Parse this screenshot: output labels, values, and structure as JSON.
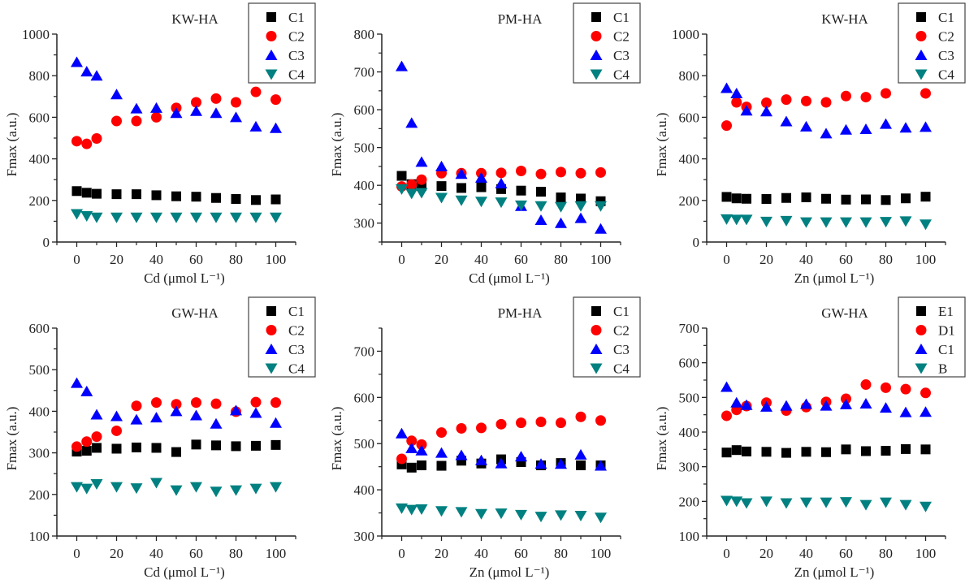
{
  "chart_data": [
    {
      "type": "scatter",
      "title": "KW-HA",
      "xlabel": "Cd (μmol L⁻¹)",
      "ylabel": "Fmax (a.u.)",
      "xlim": [
        -10,
        110
      ],
      "ylim": [
        0,
        1000
      ],
      "yticks": [
        0,
        200,
        400,
        600,
        800,
        1000
      ],
      "xticks": [
        0,
        20,
        40,
        60,
        80,
        100
      ],
      "legend": "top-right",
      "grid": false,
      "x": [
        0,
        5,
        10,
        20,
        30,
        40,
        50,
        60,
        70,
        80,
        90,
        100
      ],
      "series": [
        {
          "name": "C1",
          "marker": "square",
          "color": "#000000",
          "values": [
            245,
            237,
            232,
            230,
            230,
            225,
            220,
            218,
            212,
            207,
            202,
            205
          ]
        },
        {
          "name": "C2",
          "marker": "circle",
          "color": "#ff0000",
          "values": [
            485,
            472,
            498,
            582,
            582,
            600,
            645,
            672,
            690,
            672,
            722,
            685
          ]
        },
        {
          "name": "C3",
          "marker": "triangle-up",
          "color": "#0000ff",
          "values": [
            865,
            820,
            800,
            710,
            642,
            645,
            620,
            630,
            620,
            600,
            555,
            548
          ]
        },
        {
          "name": "C4",
          "marker": "triangle-down",
          "color": "#008080",
          "values": [
            135,
            125,
            118,
            118,
            118,
            118,
            118,
            118,
            118,
            118,
            118,
            118
          ]
        }
      ]
    },
    {
      "type": "scatter",
      "title": "PM-HA",
      "xlabel": "Cd (μmol L⁻¹)",
      "ylabel": "Fmax (a.u.)",
      "xlim": [
        -10,
        110
      ],
      "ylim": [
        250,
        800
      ],
      "yticks": [
        300,
        400,
        500,
        600,
        700,
        800
      ],
      "xticks": [
        0,
        20,
        40,
        60,
        80,
        100
      ],
      "legend": "top-right",
      "grid": false,
      "x": [
        0,
        5,
        10,
        20,
        30,
        40,
        50,
        60,
        70,
        80,
        90,
        100
      ],
      "series": [
        {
          "name": "C1",
          "marker": "square",
          "color": "#000000",
          "values": [
            425,
            403,
            398,
            398,
            393,
            395,
            390,
            386,
            383,
            368,
            365,
            358
          ]
        },
        {
          "name": "C2",
          "marker": "circle",
          "color": "#ff0000",
          "values": [
            397,
            402,
            415,
            432,
            432,
            432,
            433,
            438,
            430,
            435,
            432,
            434
          ]
        },
        {
          "name": "C3",
          "marker": "triangle-up",
          "color": "#0000ff",
          "values": [
            715,
            565,
            462,
            450,
            430,
            420,
            405,
            345,
            308,
            300,
            313,
            285
          ]
        },
        {
          "name": "C4",
          "marker": "triangle-down",
          "color": "#008080",
          "values": [
            390,
            378,
            380,
            367,
            360,
            357,
            355,
            347,
            345,
            343,
            345,
            345
          ]
        }
      ]
    },
    {
      "type": "scatter",
      "title": "KW-HA",
      "xlabel": "Zn (μmol L⁻¹)",
      "ylabel": "Fmax (a.u.)",
      "xlim": [
        -10,
        110
      ],
      "ylim": [
        0,
        1000
      ],
      "yticks": [
        0,
        200,
        400,
        600,
        800,
        1000
      ],
      "xticks": [
        0,
        20,
        40,
        60,
        80,
        100
      ],
      "legend": "top-right",
      "grid": false,
      "x": [
        0,
        5,
        10,
        20,
        30,
        40,
        50,
        60,
        70,
        80,
        90,
        100
      ],
      "series": [
        {
          "name": "C1",
          "marker": "square",
          "color": "#000000",
          "values": [
            217,
            210,
            208,
            207,
            212,
            215,
            208,
            204,
            205,
            202,
            210,
            218
          ]
        },
        {
          "name": "C2",
          "marker": "circle",
          "color": "#ff0000",
          "values": [
            560,
            672,
            650,
            670,
            685,
            678,
            672,
            702,
            697,
            715,
            null,
            715
          ]
        },
        {
          "name": "C3",
          "marker": "triangle-up",
          "color": "#0000ff",
          "values": [
            740,
            715,
            632,
            628,
            580,
            555,
            522,
            540,
            543,
            568,
            550,
            553
          ]
        },
        {
          "name": "C4",
          "marker": "triangle-down",
          "color": "#008080",
          "values": [
            110,
            108,
            108,
            98,
            102,
            95,
            95,
            95,
            95,
            97,
            100,
            85
          ]
        }
      ]
    },
    {
      "type": "scatter",
      "title": "GW-HA",
      "xlabel": "Cd (μmol L⁻¹)",
      "ylabel": "Fmax (a.u.)",
      "xlim": [
        -10,
        110
      ],
      "ylim": [
        100,
        600
      ],
      "yticks": [
        100,
        200,
        300,
        400,
        500,
        600
      ],
      "xticks": [
        0,
        20,
        40,
        60,
        80,
        100
      ],
      "legend": "top-right",
      "grid": false,
      "x": [
        0,
        5,
        10,
        20,
        30,
        40,
        50,
        60,
        70,
        80,
        90,
        100
      ],
      "series": [
        {
          "name": "C1",
          "marker": "square",
          "color": "#000000",
          "values": [
            303,
            305,
            312,
            310,
            313,
            312,
            302,
            320,
            318,
            316,
            317,
            319
          ]
        },
        {
          "name": "C2",
          "marker": "circle",
          "color": "#ff0000",
          "values": [
            315,
            327,
            339,
            353,
            413,
            421,
            417,
            421,
            418,
            399,
            422,
            421
          ]
        },
        {
          "name": "C3",
          "marker": "triangle-up",
          "color": "#0000ff",
          "values": [
            468,
            448,
            392,
            388,
            380,
            385,
            400,
            390,
            370,
            402,
            396,
            372
          ]
        },
        {
          "name": "C4",
          "marker": "triangle-down",
          "color": "#008080",
          "values": [
            218,
            214,
            225,
            218,
            215,
            228,
            210,
            218,
            207,
            210,
            214,
            218
          ]
        }
      ]
    },
    {
      "type": "scatter",
      "title": "PM-HA",
      "xlabel": "Zn (μmol L⁻¹)",
      "ylabel": "Fmax (a.u.)",
      "xlim": [
        -10,
        110
      ],
      "ylim": [
        300,
        750
      ],
      "yticks": [
        300,
        400,
        500,
        600,
        700
      ],
      "xticks": [
        0,
        20,
        40,
        60,
        80,
        100
      ],
      "legend": "top-right",
      "grid": false,
      "x": [
        0,
        5,
        10,
        20,
        30,
        40,
        50,
        60,
        70,
        80,
        90,
        100
      ],
      "series": [
        {
          "name": "C1",
          "marker": "square",
          "color": "#000000",
          "values": [
            455,
            448,
            453,
            452,
            463,
            457,
            466,
            460,
            453,
            458,
            453,
            453
          ]
        },
        {
          "name": "C2",
          "marker": "circle",
          "color": "#ff0000",
          "values": [
            467,
            506,
            498,
            524,
            533,
            534,
            542,
            545,
            547,
            545,
            558,
            550
          ]
        },
        {
          "name": "C3",
          "marker": "triangle-up",
          "color": "#0000ff",
          "values": [
            522,
            490,
            485,
            480,
            475,
            464,
            457,
            472,
            456,
            456,
            476,
            452
          ]
        },
        {
          "name": "C4",
          "marker": "triangle-down",
          "color": "#008080",
          "values": [
            360,
            357,
            358,
            354,
            352,
            348,
            349,
            346,
            342,
            345,
            344,
            340
          ]
        }
      ]
    },
    {
      "type": "scatter",
      "title": "GW-HA",
      "xlabel": "Zn (μmol L⁻¹)",
      "ylabel": "Fmax (a.u.)",
      "xlim": [
        -10,
        110
      ],
      "ylim": [
        100,
        700
      ],
      "yticks": [
        100,
        200,
        300,
        400,
        500,
        600,
        700
      ],
      "xticks": [
        0,
        20,
        40,
        60,
        80,
        100
      ],
      "legend": "top-right",
      "grid": false,
      "x": [
        0,
        5,
        10,
        20,
        30,
        40,
        50,
        60,
        70,
        80,
        90,
        100
      ],
      "series": [
        {
          "name": "E1",
          "marker": "square",
          "color": "#000000",
          "values": [
            341,
            348,
            344,
            343,
            340,
            343,
            342,
            350,
            345,
            346,
            351,
            350
          ]
        },
        {
          "name": "D1",
          "marker": "circle",
          "color": "#ff0000",
          "values": [
            447,
            464,
            475,
            485,
            462,
            472,
            487,
            496,
            537,
            528,
            524,
            513
          ]
        },
        {
          "name": "C1",
          "marker": "triangle-up",
          "color": "#0000ff",
          "values": [
            530,
            485,
            478,
            473,
            476,
            481,
            476,
            480,
            482,
            470,
            457,
            458
          ]
        },
        {
          "name": "B",
          "marker": "triangle-down",
          "color": "#008080",
          "values": [
            202,
            200,
            195,
            200,
            195,
            197,
            197,
            198,
            190,
            197,
            190,
            185
          ]
        }
      ]
    }
  ]
}
